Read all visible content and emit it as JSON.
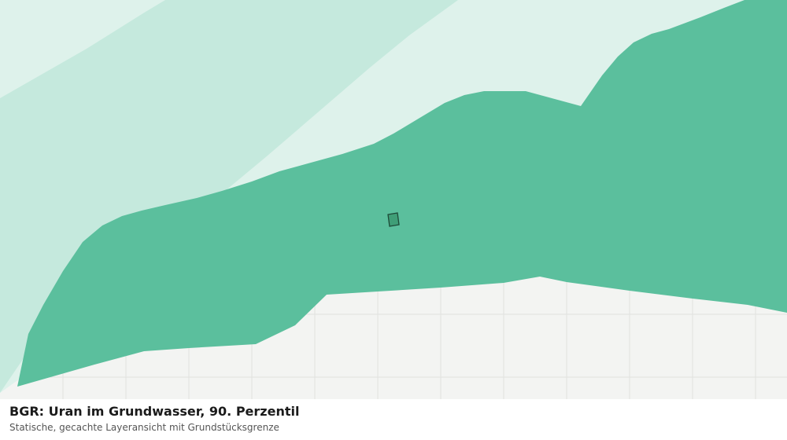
{
  "map": {
    "layer_title": "BGR: Uran im Grundwasser, 90. Perzentil",
    "subtitle": "Statische, gecachte Layeransicht mit Grundstücksgrenze",
    "colors": {
      "background": "#f3f4f2",
      "grid_line": "#e0e2df",
      "class_lightest": "#def2eb",
      "class_light": "#c5e9dd",
      "class_dark": "#5bbf9d",
      "parcel_fill": "#3f9e77",
      "parcel_outline": "#1d4a38"
    }
  }
}
